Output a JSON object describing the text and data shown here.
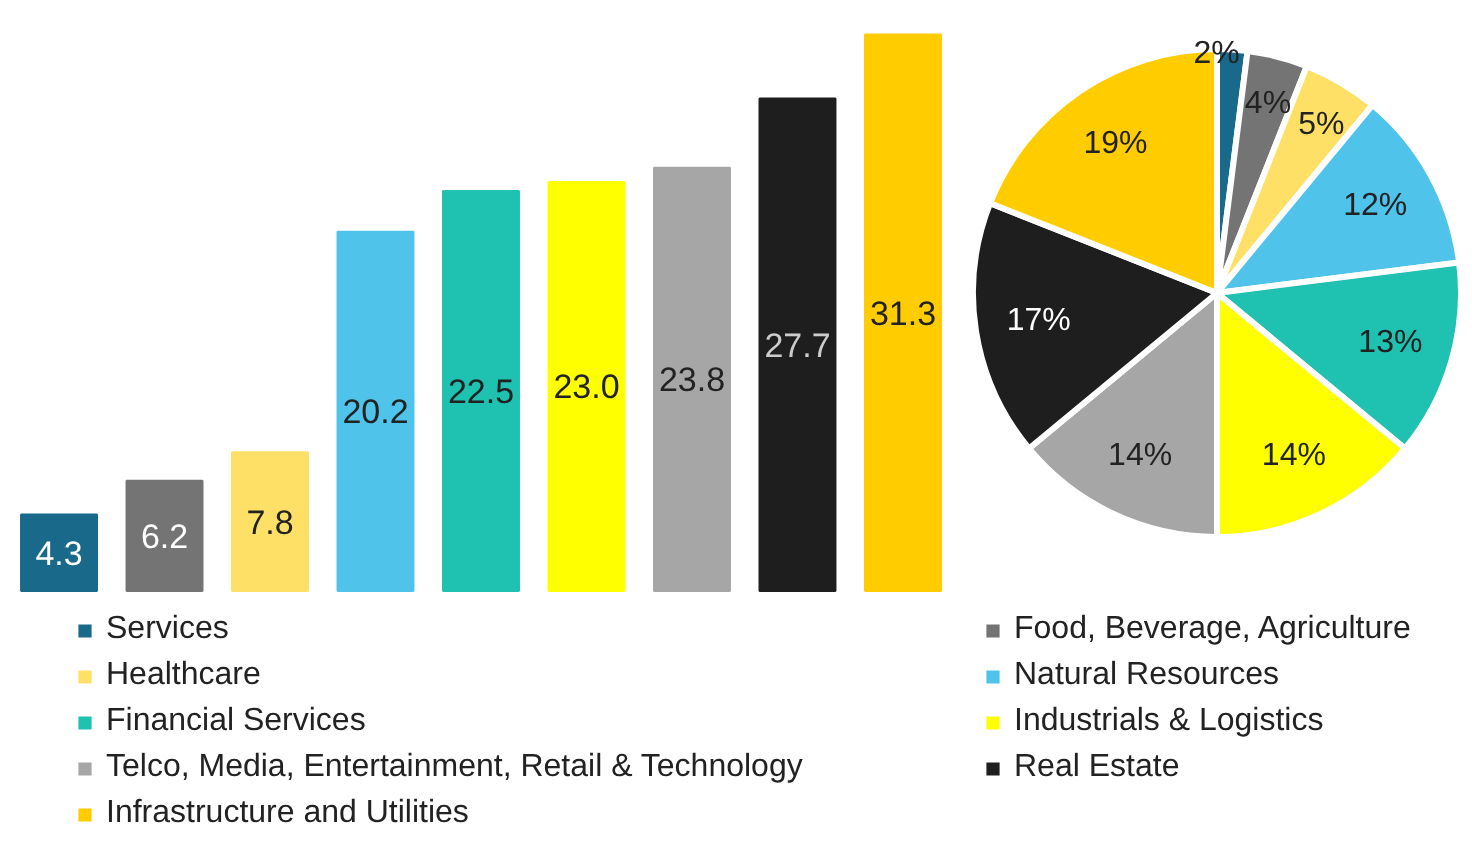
{
  "chart_data": [
    {
      "type": "bar",
      "categories": [
        null,
        null,
        null,
        null,
        null,
        null,
        null,
        null,
        null
      ],
      "values": [
        4.3,
        6.2,
        7.8,
        20.2,
        22.5,
        23.0,
        23.8,
        27.7,
        31.3
      ],
      "value_labels": [
        "4.3",
        "6.2",
        "7.8",
        "20.2",
        "22.5",
        "23.0",
        "23.8",
        "27.7",
        "31.3"
      ],
      "colors": [
        "#19698a",
        "#747474",
        "#ffe066",
        "#4fc3ea",
        "#1fc1b1",
        "#ffff00",
        "#a6a6a6",
        "#1e1e1e",
        "#ffcc00"
      ],
      "grid": false
    },
    {
      "type": "pie",
      "categories": [
        "Services",
        "Food, Beverage, Agriculture",
        "Healthcare",
        "Natural Resources",
        "Financial Services",
        "Industrials & Logistics",
        "Telco, Media, Entertainment, Retail & Technology",
        "Real Estate",
        "Infrastructure and Utilities"
      ],
      "values": [
        2,
        4,
        5,
        12,
        13,
        14,
        14,
        17,
        19
      ],
      "value_labels": [
        "2%",
        "4%",
        "5%",
        "12%",
        "13%",
        "14%",
        "14%",
        "17%",
        "19%"
      ],
      "colors": [
        "#19698a",
        "#747474",
        "#ffe066",
        "#4fc3ea",
        "#1fc1b1",
        "#ffff00",
        "#a6a6a6",
        "#1e1e1e",
        "#ffcc00"
      ],
      "legend": "bottom"
    }
  ]
}
